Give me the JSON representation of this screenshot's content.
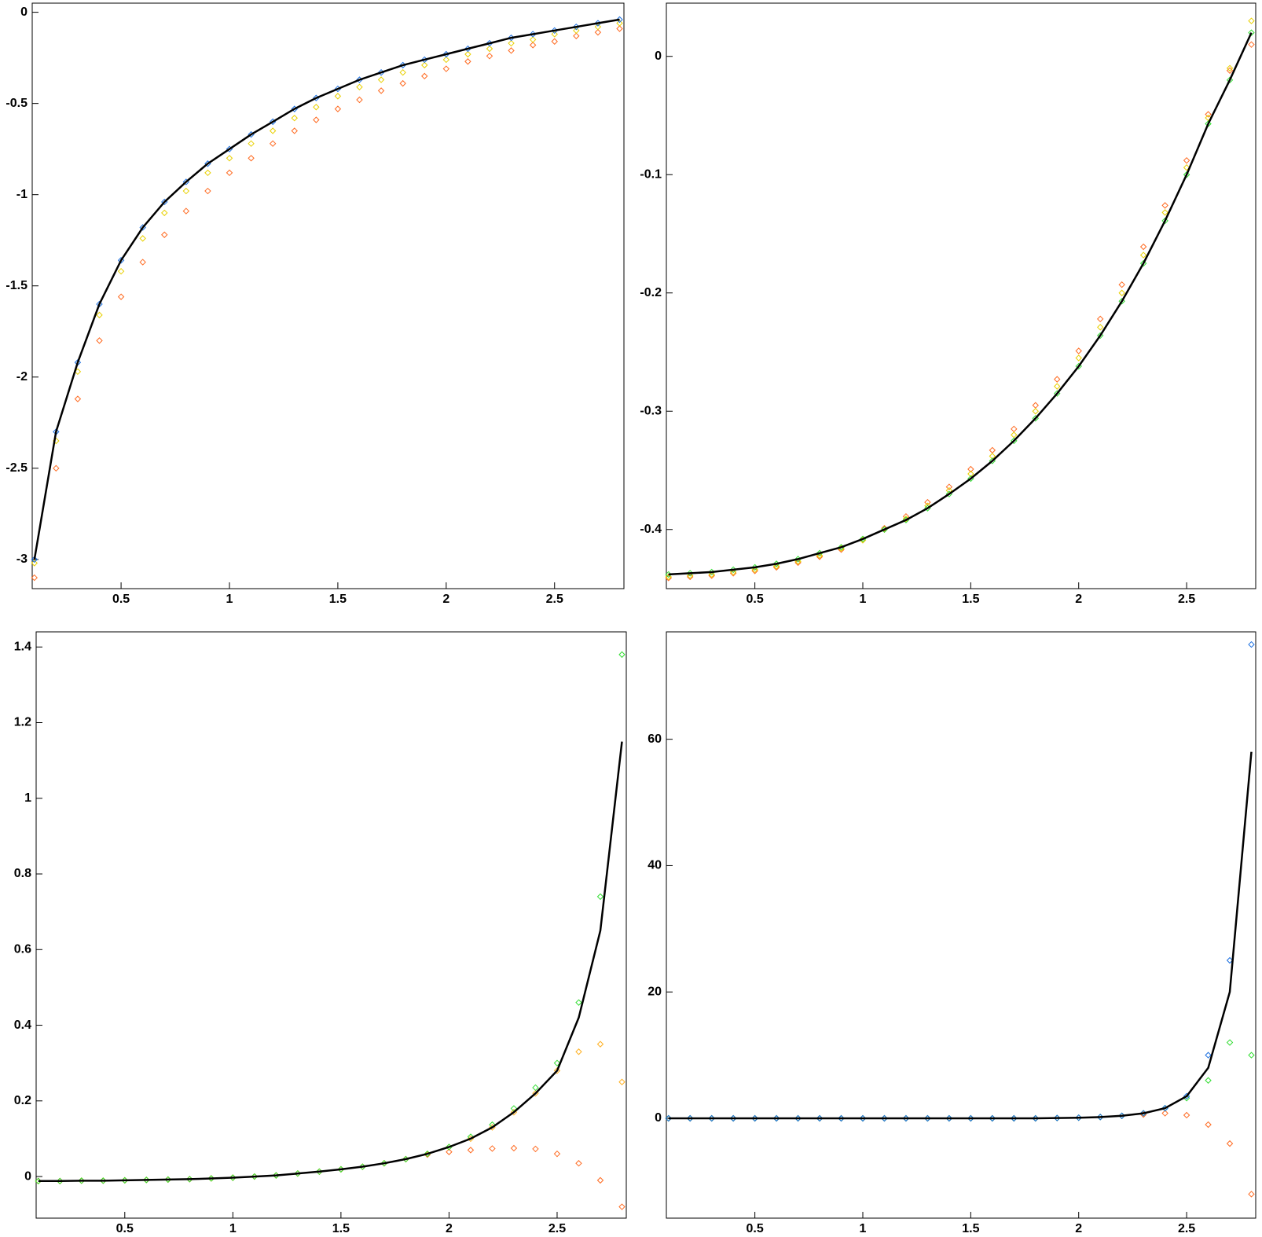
{
  "chart_data": [
    {
      "type": "scatter",
      "x": [
        0.1,
        0.2,
        0.3,
        0.4,
        0.5,
        0.6,
        0.7,
        0.8,
        0.9,
        1.0,
        1.1,
        1.2,
        1.3,
        1.4,
        1.5,
        1.6,
        1.7,
        1.8,
        1.9,
        2.0,
        2.1,
        2.2,
        2.3,
        2.4,
        2.5,
        2.6,
        2.7,
        2.8
      ],
      "xlim": [
        0.09,
        2.82
      ],
      "xticks": [
        0.5,
        1,
        1.5,
        2,
        2.5
      ],
      "ylim": [
        -3.16,
        0.05
      ],
      "yticks": [
        0,
        -0.5,
        -1,
        -1.5,
        -2,
        -2.5,
        -3
      ],
      "series": [
        {
          "color": "#ff6a20",
          "mode": "markers",
          "values": [
            -3.1,
            -2.5,
            -2.12,
            -1.8,
            -1.56,
            -1.37,
            -1.22,
            -1.09,
            -0.98,
            -0.88,
            -0.8,
            -0.72,
            -0.65,
            -0.59,
            -0.53,
            -0.48,
            -0.43,
            -0.39,
            -0.35,
            -0.31,
            -0.27,
            -0.24,
            -0.21,
            -0.18,
            -0.16,
            -0.13,
            -0.11,
            -0.09
          ]
        },
        {
          "color": "#e8d000",
          "mode": "markers",
          "values": [
            -3.02,
            -2.35,
            -1.97,
            -1.66,
            -1.42,
            -1.24,
            -1.1,
            -0.98,
            -0.88,
            -0.8,
            -0.72,
            -0.65,
            -0.58,
            -0.52,
            -0.46,
            -0.41,
            -0.37,
            -0.33,
            -0.29,
            -0.26,
            -0.23,
            -0.2,
            -0.17,
            -0.15,
            -0.12,
            -0.1,
            -0.08,
            -0.06
          ]
        },
        {
          "color": "#1a6fe0",
          "mode": "markers",
          "values": [
            -3.0,
            -2.3,
            -1.92,
            -1.6,
            -1.36,
            -1.18,
            -1.04,
            -0.93,
            -0.83,
            -0.75,
            -0.67,
            -0.6,
            -0.53,
            -0.47,
            -0.42,
            -0.37,
            -0.33,
            -0.29,
            -0.26,
            -0.23,
            -0.2,
            -0.17,
            -0.14,
            -0.12,
            -0.1,
            -0.08,
            -0.06,
            -0.04
          ]
        },
        {
          "color": "#000000",
          "mode": "line",
          "values": [
            -3.0,
            -2.3,
            -1.92,
            -1.6,
            -1.36,
            -1.18,
            -1.04,
            -0.93,
            -0.83,
            -0.75,
            -0.67,
            -0.6,
            -0.53,
            -0.47,
            -0.42,
            -0.37,
            -0.33,
            -0.29,
            -0.26,
            -0.23,
            -0.2,
            -0.17,
            -0.14,
            -0.12,
            -0.1,
            -0.08,
            -0.06,
            -0.04
          ]
        }
      ]
    },
    {
      "type": "scatter",
      "x": [
        0.1,
        0.2,
        0.3,
        0.4,
        0.5,
        0.6,
        0.7,
        0.8,
        0.9,
        1.0,
        1.1,
        1.2,
        1.3,
        1.4,
        1.5,
        1.6,
        1.7,
        1.8,
        1.9,
        2.0,
        2.1,
        2.2,
        2.3,
        2.4,
        2.5,
        2.6,
        2.7,
        2.8
      ],
      "xlim": [
        0.09,
        2.82
      ],
      "xticks": [
        0.5,
        1,
        1.5,
        2,
        2.5
      ],
      "ylim": [
        -0.45,
        0.045
      ],
      "yticks": [
        0,
        -0.1,
        -0.2,
        -0.3,
        -0.4
      ],
      "series": [
        {
          "color": "#ff6a20",
          "mode": "markers",
          "values": [
            -0.441,
            -0.44,
            -0.439,
            -0.437,
            -0.435,
            -0.432,
            -0.428,
            -0.423,
            -0.417,
            -0.409,
            -0.399,
            -0.389,
            -0.377,
            -0.364,
            -0.349,
            -0.333,
            -0.315,
            -0.295,
            -0.273,
            -0.249,
            -0.222,
            -0.193,
            -0.161,
            -0.126,
            -0.088,
            -0.049,
            -0.012,
            0.01
          ]
        },
        {
          "color": "#e8d000",
          "mode": "markers",
          "values": [
            -0.44,
            -0.439,
            -0.438,
            -0.436,
            -0.434,
            -0.431,
            -0.427,
            -0.422,
            -0.416,
            -0.409,
            -0.4,
            -0.391,
            -0.38,
            -0.367,
            -0.353,
            -0.338,
            -0.32,
            -0.3,
            -0.279,
            -0.255,
            -0.229,
            -0.2,
            -0.168,
            -0.132,
            -0.094,
            -0.052,
            -0.01,
            0.03
          ]
        },
        {
          "color": "#33dd33",
          "mode": "markers",
          "values": [
            -0.438,
            -0.437,
            -0.436,
            -0.434,
            -0.432,
            -0.429,
            -0.425,
            -0.42,
            -0.415,
            -0.408,
            -0.4,
            -0.392,
            -0.382,
            -0.37,
            -0.357,
            -0.342,
            -0.325,
            -0.306,
            -0.285,
            -0.262,
            -0.236,
            -0.207,
            -0.175,
            -0.139,
            -0.1,
            -0.057,
            -0.02,
            0.02
          ]
        },
        {
          "color": "#000000",
          "mode": "line",
          "values": [
            -0.438,
            -0.437,
            -0.436,
            -0.434,
            -0.432,
            -0.429,
            -0.425,
            -0.42,
            -0.415,
            -0.408,
            -0.4,
            -0.392,
            -0.382,
            -0.37,
            -0.357,
            -0.342,
            -0.325,
            -0.306,
            -0.285,
            -0.262,
            -0.236,
            -0.207,
            -0.175,
            -0.139,
            -0.1,
            -0.057,
            -0.02,
            0.02
          ]
        }
      ]
    },
    {
      "type": "scatter",
      "x": [
        0.1,
        0.2,
        0.3,
        0.4,
        0.5,
        0.6,
        0.7,
        0.8,
        0.9,
        1.0,
        1.1,
        1.2,
        1.3,
        1.4,
        1.5,
        1.6,
        1.7,
        1.8,
        1.9,
        2.0,
        2.1,
        2.2,
        2.3,
        2.4,
        2.5,
        2.6,
        2.7,
        2.8
      ],
      "xlim": [
        0.09,
        2.82
      ],
      "xticks": [
        0.5,
        1,
        1.5,
        2,
        2.5
      ],
      "ylim": [
        -0.11,
        1.44
      ],
      "yticks": [
        0,
        0.2,
        0.4,
        0.6,
        0.8,
        1,
        1.2,
        1.4
      ],
      "series": [
        {
          "color": "#ff6a20",
          "mode": "markers",
          "values": [
            -0.012,
            -0.012,
            -0.011,
            -0.011,
            -0.01,
            -0.009,
            -0.008,
            -0.007,
            -0.005,
            -0.003,
            0,
            0.003,
            0.008,
            0.013,
            0.019,
            0.026,
            0.035,
            0.046,
            0.058,
            0.065,
            0.07,
            0.074,
            0.075,
            0.073,
            0.06,
            0.035,
            -0.01,
            -0.08
          ]
        },
        {
          "color": "#ffb020",
          "mode": "markers",
          "values": [
            -0.012,
            -0.012,
            -0.011,
            -0.011,
            -0.01,
            -0.009,
            -0.008,
            -0.007,
            -0.005,
            -0.003,
            0,
            0.003,
            0.008,
            0.013,
            0.019,
            0.026,
            0.035,
            0.046,
            0.06,
            0.078,
            0.1,
            0.13,
            0.17,
            0.22,
            0.28,
            0.33,
            0.35,
            0.25
          ]
        },
        {
          "color": "#33dd33",
          "mode": "markers",
          "values": [
            -0.012,
            -0.012,
            -0.011,
            -0.011,
            -0.01,
            -0.009,
            -0.008,
            -0.007,
            -0.005,
            -0.003,
            0,
            0.003,
            0.008,
            0.013,
            0.019,
            0.026,
            0.035,
            0.046,
            0.06,
            0.078,
            0.105,
            0.137,
            0.18,
            0.235,
            0.3,
            0.46,
            0.74,
            1.38
          ]
        },
        {
          "color": "#000000",
          "mode": "line",
          "values": [
            -0.012,
            -0.012,
            -0.011,
            -0.011,
            -0.01,
            -0.009,
            -0.008,
            -0.007,
            -0.005,
            -0.003,
            0,
            0.003,
            0.008,
            0.013,
            0.019,
            0.026,
            0.035,
            0.046,
            0.06,
            0.078,
            0.1,
            0.13,
            0.17,
            0.22,
            0.28,
            0.42,
            0.65,
            1.15
          ]
        }
      ]
    },
    {
      "type": "scatter",
      "x": [
        0.1,
        0.2,
        0.3,
        0.4,
        0.5,
        0.6,
        0.7,
        0.8,
        0.9,
        1.0,
        1.1,
        1.2,
        1.3,
        1.4,
        1.5,
        1.6,
        1.7,
        1.8,
        1.9,
        2.0,
        2.1,
        2.2,
        2.3,
        2.4,
        2.5,
        2.6,
        2.7,
        2.8
      ],
      "xlim": [
        0.09,
        2.82
      ],
      "xticks": [
        0.5,
        1,
        1.5,
        2,
        2.5
      ],
      "ylim": [
        -15.8,
        77
      ],
      "yticks": [
        0,
        20,
        40,
        60
      ],
      "series": [
        {
          "color": "#ff6a20",
          "mode": "markers",
          "values": [
            0,
            0,
            0,
            0,
            0,
            0,
            0,
            0,
            0,
            0,
            0,
            0,
            0,
            0,
            0,
            0,
            0,
            0,
            0.05,
            0.1,
            0.2,
            0.4,
            0.6,
            0.8,
            0.5,
            -1,
            -4,
            -12
          ]
        },
        {
          "color": "#33dd33",
          "mode": "markers",
          "values": [
            0,
            0,
            0,
            0,
            0,
            0,
            0,
            0,
            0,
            0,
            0,
            0,
            0,
            0,
            0,
            0,
            0,
            0,
            0.05,
            0.1,
            0.2,
            0.4,
            0.8,
            1.6,
            3.2,
            6,
            12,
            10
          ]
        },
        {
          "color": "#1a6fe0",
          "mode": "markers",
          "values": [
            0,
            0,
            0,
            0,
            0,
            0,
            0,
            0,
            0,
            0,
            0,
            0,
            0,
            0,
            0,
            0,
            0,
            0,
            0.05,
            0.1,
            0.2,
            0.4,
            0.8,
            1.6,
            3.5,
            10,
            25,
            75
          ]
        },
        {
          "color": "#000000",
          "mode": "line",
          "values": [
            0,
            0,
            0,
            0,
            0,
            0,
            0,
            0,
            0,
            0,
            0,
            0,
            0,
            0,
            0,
            0,
            0,
            0,
            0.05,
            0.1,
            0.2,
            0.4,
            0.8,
            1.6,
            3.5,
            8,
            20,
            58
          ]
        }
      ]
    }
  ]
}
